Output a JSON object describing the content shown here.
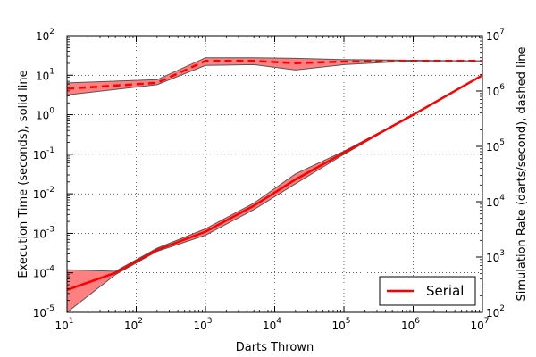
{
  "chart_data": {
    "type": "line",
    "title": "",
    "xlabel": "Darts Thrown",
    "ylabel_left": "Execution Time (seconds), solid line",
    "ylabel_right": "Simulation Rate (darts/second), dashed line",
    "x_scale": "log",
    "y_left_scale": "log",
    "y_right_scale": "log",
    "xlim": [
      10,
      10000000
    ],
    "ylim_left": [
      1e-05,
      100
    ],
    "ylim_right": [
      100,
      10000000
    ],
    "grid": true,
    "legend": {
      "placement": "bottom-right",
      "entries": [
        "Serial"
      ]
    },
    "x_ticks": [
      {
        "value": 10,
        "base": "10",
        "exp": "1"
      },
      {
        "value": 100,
        "base": "10",
        "exp": "2"
      },
      {
        "value": 1000,
        "base": "10",
        "exp": "3"
      },
      {
        "value": 10000,
        "base": "10",
        "exp": "4"
      },
      {
        "value": 100000,
        "base": "10",
        "exp": "5"
      },
      {
        "value": 1000000,
        "base": "10",
        "exp": "6"
      },
      {
        "value": 10000000,
        "base": "10",
        "exp": "7"
      }
    ],
    "y_left_ticks": [
      {
        "value": 1e-05,
        "base": "10",
        "exp": "-5"
      },
      {
        "value": 0.0001,
        "base": "10",
        "exp": "-4"
      },
      {
        "value": 0.001,
        "base": "10",
        "exp": "-3"
      },
      {
        "value": 0.01,
        "base": "10",
        "exp": "-2"
      },
      {
        "value": 0.1,
        "base": "10",
        "exp": "-1"
      },
      {
        "value": 1,
        "base": "10",
        "exp": "0"
      },
      {
        "value": 10,
        "base": "10",
        "exp": "1"
      },
      {
        "value": 100,
        "base": "10",
        "exp": "2"
      }
    ],
    "y_right_ticks": [
      {
        "value": 100,
        "base": "10",
        "exp": "2"
      },
      {
        "value": 1000,
        "base": "10",
        "exp": "3"
      },
      {
        "value": 10000,
        "base": "10",
        "exp": "4"
      },
      {
        "value": 100000,
        "base": "10",
        "exp": "5"
      },
      {
        "value": 1000000,
        "base": "10",
        "exp": "6"
      },
      {
        "value": 10000000,
        "base": "10",
        "exp": "7"
      }
    ],
    "color": "#ff0000",
    "band_fill": "#ff8080",
    "band_edge": "#555555",
    "series": [
      {
        "name": "Serial",
        "style": "solid",
        "axis": "left",
        "x": [
          10,
          50,
          200,
          1000,
          5000,
          20000,
          100000,
          1000000,
          10000000
        ],
        "y": [
          3.7e-05,
          0.0001,
          0.00038,
          0.0011,
          0.005,
          0.023,
          0.11,
          1.0,
          10.0
        ],
        "y_upper": [
          0.00012,
          0.00011,
          0.00042,
          0.0013,
          0.0058,
          0.032,
          0.12,
          1.0,
          10.0
        ],
        "y_lower": [
          1e-05,
          9e-05,
          0.00035,
          0.0009,
          0.004,
          0.018,
          0.1,
          1.0,
          10.0
        ]
      },
      {
        "axis": "right",
        "style": "dashed",
        "x": [
          10,
          200,
          1000,
          5000,
          20000,
          100000,
          1000000,
          10000000
        ],
        "y": [
          1100000,
          1400000,
          3500000,
          3500000,
          3200000,
          3400000,
          3500000,
          3500000
        ],
        "y_upper": [
          1400000,
          1600000,
          4000000,
          4000000,
          3900000,
          3700000,
          3600000,
          3500000
        ],
        "y_lower": [
          850000,
          1300000,
          2900000,
          3000000,
          2400000,
          3000000,
          3500000,
          3500000
        ]
      }
    ]
  }
}
